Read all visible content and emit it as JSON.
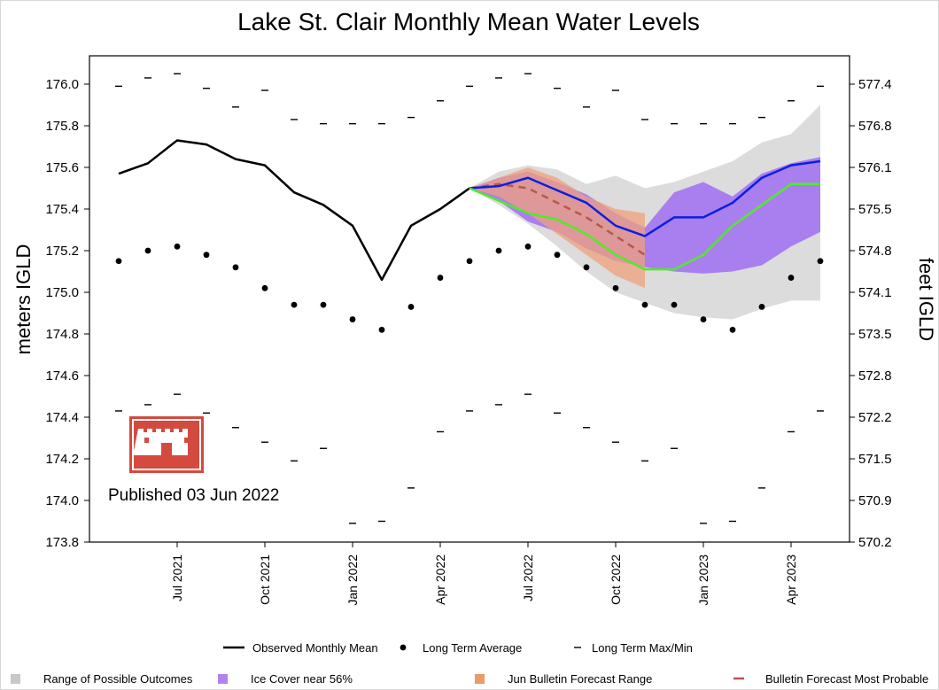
{
  "chart_data": {
    "type": "line",
    "title": "Lake St. Clair Monthly Mean Water Levels",
    "ylabel_left": "meters IGLD",
    "ylabel_right": "feet IGLD",
    "ylim": [
      173.8,
      176.2
    ],
    "yticks": [
      "176.0",
      "175.8",
      "175.6",
      "175.4",
      "175.2",
      "175.0",
      "174.8",
      "174.6",
      "174.4",
      "174.2",
      "174.0",
      "173.8"
    ],
    "ytick_values": [
      176.0,
      175.8,
      175.6,
      175.4,
      175.2,
      175.0,
      174.8,
      174.6,
      174.4,
      174.2,
      174.0,
      173.8
    ],
    "yticks_right": [
      "577.4",
      "576.8",
      "576.1",
      "575.5",
      "574.8",
      "574.1",
      "573.5",
      "572.8",
      "572.2",
      "571.5",
      "570.9",
      "570.2"
    ],
    "x_months": [
      "2021-05",
      "2021-06",
      "2021-07",
      "2021-08",
      "2021-09",
      "2021-10",
      "2021-11",
      "2021-12",
      "2022-01",
      "2022-02",
      "2022-03",
      "2022-04",
      "2022-05",
      "2022-06",
      "2022-07",
      "2022-08",
      "2022-09",
      "2022-10",
      "2022-11",
      "2022-12",
      "2023-01",
      "2023-02",
      "2023-03",
      "2023-04",
      "2023-05"
    ],
    "xtick_labels": [
      {
        "label": "Jul 2021",
        "month": "2021-07"
      },
      {
        "label": "Oct 2021",
        "month": "2021-10"
      },
      {
        "label": "Jan 2022",
        "month": "2022-01"
      },
      {
        "label": "Apr 2022",
        "month": "2022-04"
      },
      {
        "label": "Jul 2022",
        "month": "2022-07"
      },
      {
        "label": "Oct 2022",
        "month": "2022-10"
      },
      {
        "label": "Jan 2023",
        "month": "2023-01"
      },
      {
        "label": "Apr 2023",
        "month": "2023-04"
      }
    ],
    "observed": [
      175.57,
      175.62,
      175.73,
      175.71,
      175.64,
      175.61,
      175.48,
      175.42,
      175.32,
      175.06,
      175.32,
      175.4,
      175.5
    ],
    "long_term_average": [
      175.15,
      175.2,
      175.22,
      175.18,
      175.12,
      175.02,
      174.94,
      174.94,
      174.87,
      174.82,
      174.93,
      175.07,
      175.15,
      175.2,
      175.22,
      175.18,
      175.12,
      175.02,
      174.94,
      174.94,
      174.87,
      174.82,
      174.93,
      175.07,
      175.15
    ],
    "long_term_max": [
      175.99,
      176.03,
      176.05,
      175.98,
      175.89,
      175.97,
      175.83,
      175.81,
      175.81,
      175.81,
      175.84,
      175.92,
      175.99,
      176.03,
      176.05,
      175.98,
      175.89,
      175.97,
      175.83,
      175.81,
      175.81,
      175.81,
      175.84,
      175.92,
      175.99
    ],
    "long_term_min": [
      174.43,
      174.46,
      174.51,
      174.42,
      174.35,
      174.28,
      174.19,
      174.25,
      173.89,
      173.9,
      174.06,
      174.33,
      174.43,
      174.46,
      174.51,
      174.42,
      174.35,
      174.28,
      174.19,
      174.25,
      173.89,
      173.9,
      174.06,
      174.33,
      174.43
    ],
    "forecast_start_index": 12,
    "possible_outcomes_upper": [
      175.5,
      175.58,
      175.61,
      175.59,
      175.52,
      175.56,
      175.5,
      175.53,
      175.58,
      175.63,
      175.72,
      175.76,
      175.9
    ],
    "possible_outcomes_lower": [
      175.5,
      175.42,
      175.33,
      175.22,
      175.1,
      175.0,
      174.95,
      174.9,
      174.88,
      174.87,
      174.92,
      174.96,
      174.96
    ],
    "ice_cover_upper": [
      175.5,
      175.55,
      175.58,
      175.53,
      175.47,
      175.38,
      175.31,
      175.48,
      175.53,
      175.46,
      175.57,
      175.62,
      175.65
    ],
    "ice_cover_lower": [
      175.5,
      175.44,
      175.34,
      175.29,
      175.21,
      175.15,
      175.12,
      175.1,
      175.09,
      175.1,
      175.13,
      175.22,
      175.29
    ],
    "bulletin_range_upper": [
      175.5,
      175.55,
      175.6,
      175.55,
      175.46,
      175.4,
      175.38
    ],
    "bulletin_range_lower": [
      175.5,
      175.46,
      175.38,
      175.28,
      175.18,
      175.08,
      175.02
    ],
    "bulletin_most_probable": [
      175.5,
      175.52,
      175.5,
      175.43,
      175.36,
      175.27,
      175.18
    ],
    "ice_cover_forecast": [
      175.5,
      175.51,
      175.55,
      175.49,
      175.43,
      175.32,
      175.27,
      175.36,
      175.36,
      175.43,
      175.55,
      175.61,
      175.63
    ],
    "most_likely_forecast": [
      175.5,
      175.44,
      175.38,
      175.35,
      175.28,
      175.18,
      175.11,
      175.11,
      175.18,
      175.32,
      175.42,
      175.52,
      175.52
    ],
    "legend": [
      {
        "label": "Observed Monthly Mean",
        "marker": "line",
        "color": "#000000"
      },
      {
        "label": "Long Term Average",
        "marker": "dot",
        "color": "#000000"
      },
      {
        "label": "Long Term Max/Min",
        "marker": "dash",
        "color": "#000000"
      },
      {
        "label": "Range of Possible Outcomes",
        "marker": "square",
        "color": "#c8c8c8"
      },
      {
        "label": "Ice Cover near 56%",
        "marker": "square",
        "color": "#b283f0"
      },
      {
        "label": "Jun Bulletin Forecast Range",
        "marker": "square",
        "color": "#eb9a6a"
      },
      {
        "label": "Bulletin Forecast Most Probable",
        "marker": "dashline",
        "color": "#b8574a"
      }
    ],
    "colors": {
      "observed": "#000000",
      "possible_outcomes": "#dcdcdc",
      "ice_cover_band": "#a97ff0",
      "bulletin_range": "#f0a07c",
      "bulletin_most_probable": "#b8574a",
      "ice_cover_line": "#0b1ee6",
      "most_likely_line": "#54e82c"
    }
  },
  "publication": {
    "text": "Published 03 Jun 2022",
    "logo_color": "#d44a3e"
  }
}
